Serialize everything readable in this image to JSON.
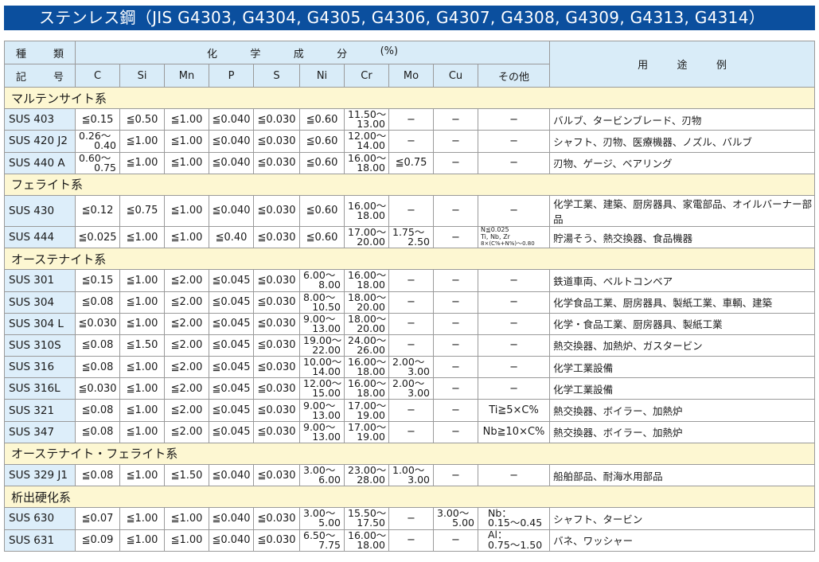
{
  "title": "ステンレス鋼（JIS G4303, G4304, G4305, G4306, G4307, G4308, G4309, G4313, G4314）",
  "header": {
    "type_top": [
      "種",
      "類"
    ],
    "type_bottom": [
      "記",
      "号"
    ],
    "chem": [
      "化",
      "学",
      "成",
      "分",
      "(%)"
    ],
    "columns": [
      "C",
      "Si",
      "Mn",
      "P",
      "S",
      "Ni",
      "Cr",
      "Mo",
      "Cu",
      "その他"
    ],
    "usage": [
      "用",
      "途",
      "例"
    ]
  },
  "groups": [
    {
      "label": "マルテンサイト系",
      "rows": [
        {
          "name": "SUS 403",
          "cells": [
            "≦0.15",
            "≦0.50",
            "≦1.00",
            "≦0.040",
            "≦0.030",
            "≦0.60",
            [
              "11.50〜",
              "13.00"
            ],
            "−",
            "−",
            "−"
          ],
          "use": "バルブ、タービンブレード、刃物"
        },
        {
          "name": "SUS 420 J2",
          "cells": [
            [
              "0.26〜",
              "0.40"
            ],
            "≦1.00",
            "≦1.00",
            "≦0.040",
            "≦0.030",
            "≦0.60",
            [
              "12.00〜",
              "14.00"
            ],
            "−",
            "−",
            "−"
          ],
          "use": "シャフト、刃物、医療機器、ノズル、バルブ"
        },
        {
          "name": "SUS 440 A",
          "cells": [
            [
              "0.60〜",
              "0.75"
            ],
            "≦1.00",
            "≦1.00",
            "≦0.040",
            "≦0.030",
            "≦0.60",
            [
              "16.00〜",
              "18.00"
            ],
            "≦0.75",
            "−",
            "−"
          ],
          "use": "刃物、ゲージ、ベアリング"
        }
      ]
    },
    {
      "label": "フェライト系",
      "rows": [
        {
          "name": "SUS 430",
          "cells": [
            "≦0.12",
            "≦0.75",
            "≦1.00",
            "≦0.040",
            "≦0.030",
            "≦0.60",
            [
              "16.00〜",
              "18.00"
            ],
            "−",
            "−",
            "−"
          ],
          "use": "化学工業、建築、厨房器具、家電部品、オイルバーナー部品"
        },
        {
          "name": "SUS 444",
          "cells": [
            "≦0.025",
            "≦1.00",
            "≦1.00",
            "≦0.40",
            "≦0.030",
            "≦0.60",
            [
              "17.00〜",
              "20.00"
            ],
            [
              "1.75〜",
              "2.50"
            ],
            "−",
            {
              "note": [
                "N≦0.025",
                "Ti, Nb, Zr",
                "8×(C%+N%)〜0.80"
              ]
            }
          ],
          "use": "貯湯そう、熱交換器、食品機器"
        }
      ]
    },
    {
      "label": "オーステナイト系",
      "rows": [
        {
          "name": "SUS 301",
          "cells": [
            "≦0.15",
            "≦1.00",
            "≦2.00",
            "≦0.045",
            "≦0.030",
            [
              "6.00〜",
              "8.00"
            ],
            [
              "16.00〜",
              "18.00"
            ],
            "−",
            "−",
            "−"
          ],
          "use": "鉄道車両、ベルトコンベア"
        },
        {
          "name": "SUS 304",
          "cells": [
            "≦0.08",
            "≦1.00",
            "≦2.00",
            "≦0.045",
            "≦0.030",
            [
              "8.00〜",
              "10.50"
            ],
            [
              "18.00〜",
              "20.00"
            ],
            "−",
            "−",
            "−"
          ],
          "use": "化学食品工業、厨房器具、製紙工業、車輌、建築"
        },
        {
          "name": "SUS 304 L",
          "cells": [
            "≦0.030",
            "≦1.00",
            "≦2.00",
            "≦0.045",
            "≦0.030",
            [
              "9.00〜",
              "13.00"
            ],
            [
              "18.00〜",
              "20.00"
            ],
            "−",
            "−",
            "−"
          ],
          "use": "化学・食品工業、厨房器具、製紙工業"
        },
        {
          "name": "SUS 310S",
          "cells": [
            "≦0.08",
            "≦1.50",
            "≦2.00",
            "≦0.045",
            "≦0.030",
            [
              "19.00〜",
              "22.00"
            ],
            [
              "24.00〜",
              "26.00"
            ],
            "−",
            "−",
            "−"
          ],
          "use": "熱交換器、加熱炉、ガスタービン"
        },
        {
          "name": "SUS 316",
          "cells": [
            "≦0.08",
            "≦1.00",
            "≦2.00",
            "≦0.045",
            "≦0.030",
            [
              "10.00〜",
              "14.00"
            ],
            [
              "16.00〜",
              "18.00"
            ],
            [
              "2.00〜",
              "3.00"
            ],
            "−",
            "−"
          ],
          "use": "化学工業設備"
        },
        {
          "name": "SUS 316L",
          "cells": [
            "≦0.030",
            "≦1.00",
            "≦2.00",
            "≦0.045",
            "≦0.030",
            [
              "12.00〜",
              "15.00"
            ],
            [
              "16.00〜",
              "18.00"
            ],
            [
              "2.00〜",
              "3.00"
            ],
            "−",
            "−"
          ],
          "use": "化学工業設備"
        },
        {
          "name": "SUS 321",
          "cells": [
            "≦0.08",
            "≦1.00",
            "≦2.00",
            "≦0.045",
            "≦0.030",
            [
              "9.00〜",
              "13.00"
            ],
            [
              "17.00〜",
              "19.00"
            ],
            "−",
            "−",
            "Ti≧5×C%"
          ],
          "use": "熱交換器、ボイラー、加熱炉"
        },
        {
          "name": "SUS 347",
          "cells": [
            "≦0.08",
            "≦1.00",
            "≦2.00",
            "≦0.045",
            "≦0.030",
            [
              "9.00〜",
              "13.00"
            ],
            [
              "17.00〜",
              "19.00"
            ],
            "−",
            "−",
            "Nb≧10×C%"
          ],
          "use": "熱交換器、ボイラー、加熱炉"
        }
      ]
    },
    {
      "label": "オーステナイト・フェライト系",
      "rows": [
        {
          "name": "SUS 329 J1",
          "cells": [
            "≦0.08",
            "≦1.00",
            "≦1.50",
            "≦0.040",
            "≦0.030",
            [
              "3.00〜",
              "6.00"
            ],
            [
              "23.00〜",
              "28.00"
            ],
            [
              "1.00〜",
              "3.00"
            ],
            "−",
            "−"
          ],
          "use": "船舶部品、耐海水用部品"
        }
      ]
    },
    {
      "label": "析出硬化系",
      "rows": [
        {
          "name": "SUS 630",
          "cells": [
            "≦0.07",
            "≦1.00",
            "≦1.00",
            "≦0.040",
            "≦0.030",
            [
              "3.00〜",
              "5.00"
            ],
            [
              "15.50〜",
              "17.50"
            ],
            "−",
            [
              "3.00〜",
              "5.00"
            ],
            {
              "note2": [
                "Nb：",
                "0.15〜0.45"
              ]
            }
          ],
          "use": "シャフト、タービン"
        },
        {
          "name": "SUS 631",
          "cells": [
            "≦0.09",
            "≦1.00",
            "≦1.00",
            "≦0.040",
            "≦0.030",
            [
              "6.50〜",
              "7.75"
            ],
            [
              "16.00〜",
              "18.00"
            ],
            "−",
            "−",
            {
              "note2": [
                "Al：",
                "0.75〜1.50"
              ]
            }
          ],
          "use": "バネ、ワッシャー"
        }
      ]
    }
  ]
}
